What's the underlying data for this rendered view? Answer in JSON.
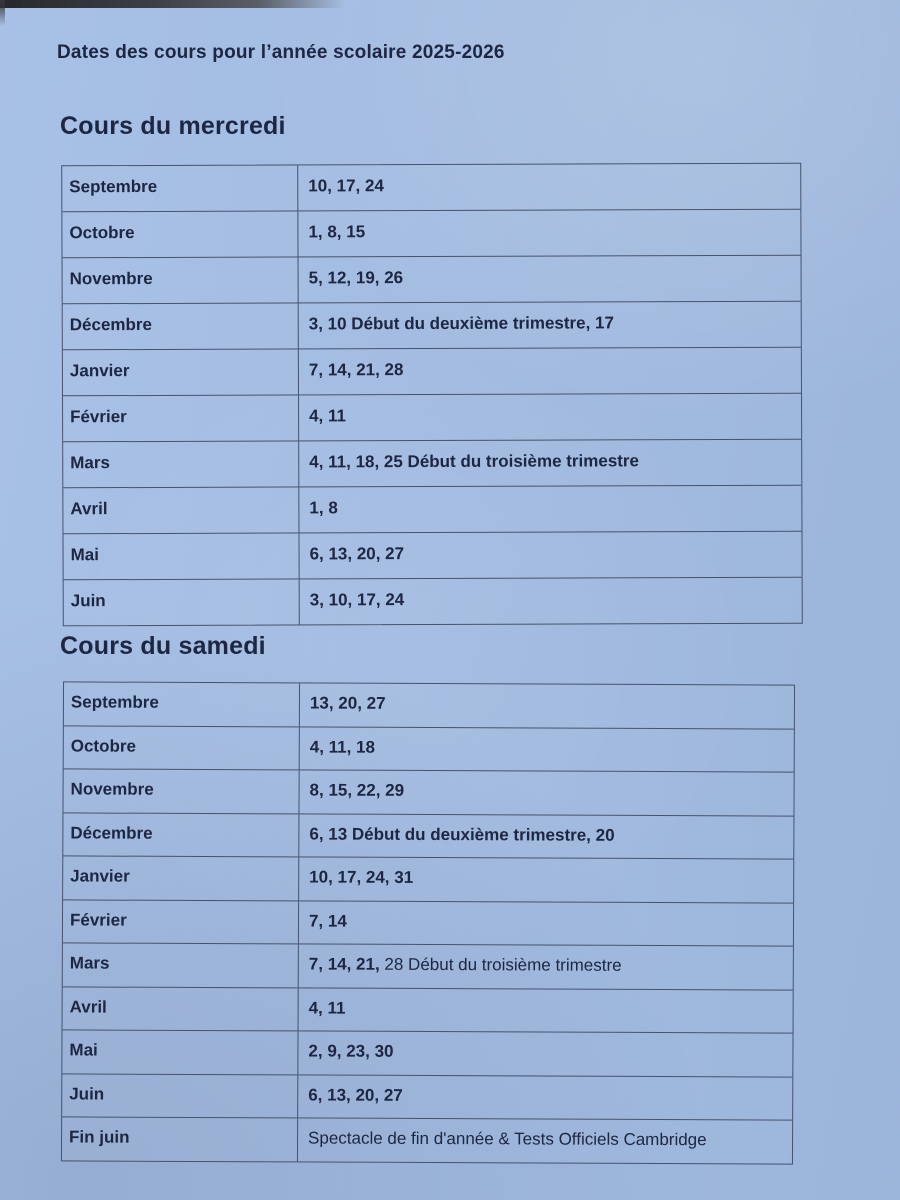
{
  "document": {
    "title": "Dates des cours pour l’année scolaire 2025-2026"
  },
  "colors": {
    "paper": "#a3bde4",
    "ink": "#1d2642",
    "table_border": "#46536f"
  },
  "sections": [
    {
      "heading": "Cours du mercredi",
      "rows": [
        {
          "month": "Septembre",
          "dates": [
            {
              "text": "10, 17, 24",
              "bold": true
            }
          ]
        },
        {
          "month": "Octobre",
          "dates": [
            {
              "text": "1, 8, 15",
              "bold": true
            }
          ]
        },
        {
          "month": "Novembre",
          "dates": [
            {
              "text": "5, 12, 19, 26",
              "bold": true
            }
          ]
        },
        {
          "month": "Décembre",
          "dates": [
            {
              "text": "3, 10 Début du deuxième trimestre, 17",
              "bold": true
            }
          ]
        },
        {
          "month": "Janvier",
          "dates": [
            {
              "text": "7, 14, 21, 28",
              "bold": true
            }
          ]
        },
        {
          "month": "Février",
          "dates": [
            {
              "text": "4, 11",
              "bold": true
            }
          ]
        },
        {
          "month": "Mars",
          "dates": [
            {
              "text": "4, 11, 18, 25 Début du troisième trimestre",
              "bold": true
            }
          ]
        },
        {
          "month": "Avril",
          "dates": [
            {
              "text": "1, 8",
              "bold": true
            }
          ]
        },
        {
          "month": "Mai",
          "dates": [
            {
              "text": "6, 13, 20, 27",
              "bold": true
            }
          ]
        },
        {
          "month": "Juin",
          "dates": [
            {
              "text": "3, 10, 17, 24",
              "bold": true
            }
          ]
        }
      ]
    },
    {
      "heading": "Cours du samedi",
      "rows": [
        {
          "month": "Septembre",
          "dates": [
            {
              "text": "13, 20, 27",
              "bold": true
            }
          ]
        },
        {
          "month": "Octobre",
          "dates": [
            {
              "text": "4, 11, 18",
              "bold": true
            }
          ]
        },
        {
          "month": "Novembre",
          "dates": [
            {
              "text": "8, 15, 22, 29",
              "bold": true
            }
          ]
        },
        {
          "month": "Décembre",
          "dates": [
            {
              "text": "6, 13 Début du deuxième trimestre, 20",
              "bold": true
            }
          ]
        },
        {
          "month": "Janvier",
          "dates": [
            {
              "text": "10, 17, 24, 31",
              "bold": true
            }
          ]
        },
        {
          "month": "Février",
          "dates": [
            {
              "text": "7, 14",
              "bold": true
            }
          ]
        },
        {
          "month": "Mars",
          "dates": [
            {
              "text": "7, 14, 21, ",
              "bold": true
            },
            {
              "text": "28 Début du troisième trimestre",
              "bold": false
            }
          ]
        },
        {
          "month": "Avril",
          "dates": [
            {
              "text": "4, 11",
              "bold": true
            }
          ]
        },
        {
          "month": "Mai",
          "dates": [
            {
              "text": "2, 9, 23, 30",
              "bold": true
            }
          ]
        },
        {
          "month": "Juin",
          "dates": [
            {
              "text": "6, 13, 20, 27",
              "bold": true
            }
          ]
        },
        {
          "month": "Fin juin",
          "dates": [
            {
              "text": "Spectacle de fin d'année & Tests Officiels Cambridge",
              "bold": false
            }
          ]
        }
      ]
    }
  ]
}
